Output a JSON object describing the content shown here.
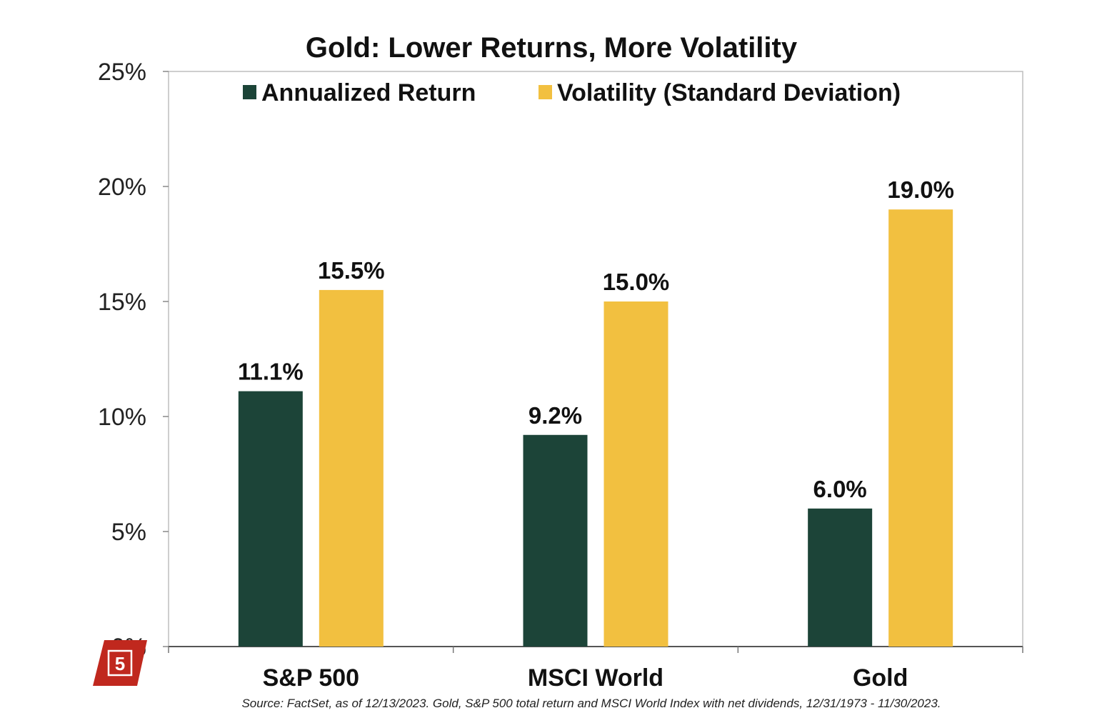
{
  "chart_data": {
    "type": "bar",
    "title": "Gold: Lower Returns, More Volatility",
    "categories": [
      "S&P 500",
      "MSCI World",
      "Gold"
    ],
    "series": [
      {
        "name": "Annualized Return",
        "values": [
          11.1,
          9.2,
          6.0
        ],
        "labels": [
          "11.1%",
          "9.2%",
          "6.0%"
        ],
        "color": "#1c4438"
      },
      {
        "name": "Volatility (Standard Deviation)",
        "values": [
          15.5,
          15.0,
          19.0
        ],
        "labels": [
          "15.5%",
          "15.0%",
          "19.0%"
        ],
        "color": "#f2c040"
      }
    ],
    "ylim": [
      0,
      25
    ],
    "yticks": [
      0,
      5,
      10,
      15,
      20,
      25
    ],
    "ytick_labels": [
      "0%",
      "5%",
      "10%",
      "15%",
      "20%",
      "25%"
    ],
    "legend_position": "top",
    "grid": false,
    "source": "Source: FactSet, as of 12/13/2023. Gold, S&P 500 total return and MSCI World Index with net dividends, 12/31/1973 - 11/30/2023."
  },
  "badge": {
    "label": "5",
    "color": "#c0281e"
  }
}
